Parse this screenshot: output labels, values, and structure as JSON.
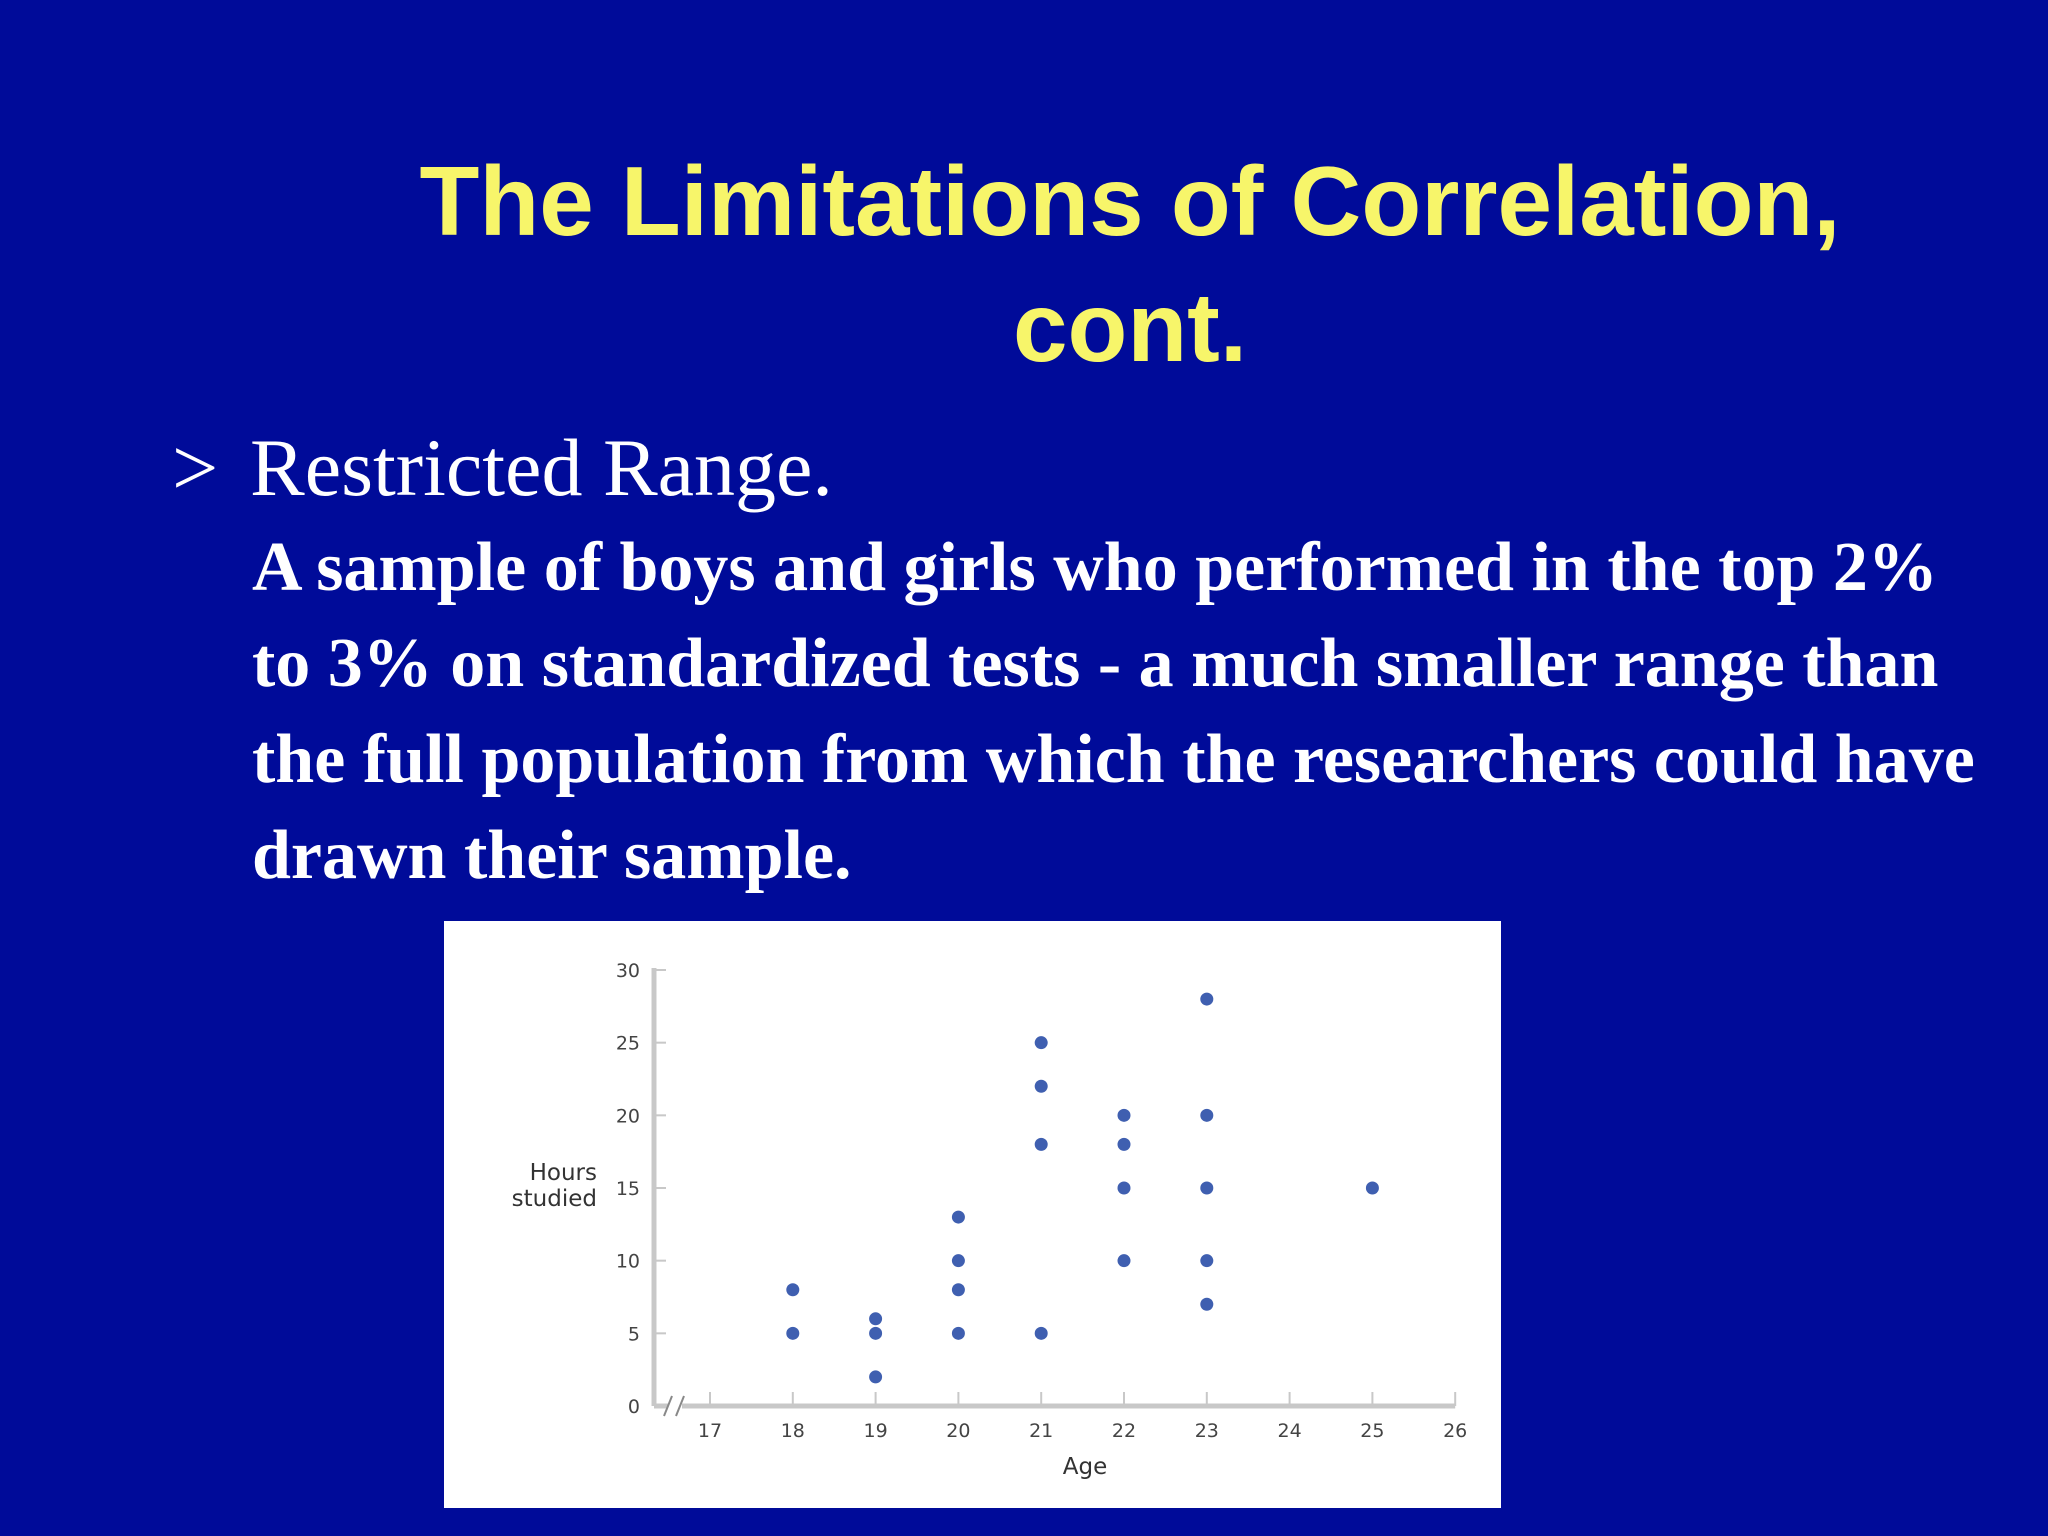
{
  "slide": {
    "title_line1": "The Limitations of Correlation,",
    "title_line2": "cont.",
    "bullet_marker": ">",
    "bullet_heading": "Restricted Range.",
    "body": "A sample of boys and girls who performed in the top 2% to 3% on standardized tests - a much smaller range than the full population from which the researchers could have drawn their sample."
  },
  "colors": {
    "background": "#000b99",
    "title": "#f7f56a",
    "text": "#ffffff",
    "point": "#3f5fb0",
    "axis": "#c8c8c8"
  },
  "chart_data": {
    "type": "scatter",
    "xlabel": "Age",
    "ylabel_line1": "Hours",
    "ylabel_line2": "studied",
    "xlim": [
      17,
      26
    ],
    "ylim": [
      0,
      30
    ],
    "xticks": [
      17,
      18,
      19,
      20,
      21,
      22,
      23,
      24,
      25,
      26
    ],
    "yticks": [
      0,
      5,
      10,
      15,
      20,
      25,
      30
    ],
    "axis_break": true,
    "grid": false,
    "points": [
      {
        "x": 18,
        "y": 8
      },
      {
        "x": 18,
        "y": 5
      },
      {
        "x": 19,
        "y": 6
      },
      {
        "x": 19,
        "y": 5
      },
      {
        "x": 19,
        "y": 2
      },
      {
        "x": 20,
        "y": 13
      },
      {
        "x": 20,
        "y": 10
      },
      {
        "x": 20,
        "y": 8
      },
      {
        "x": 20,
        "y": 5
      },
      {
        "x": 21,
        "y": 25
      },
      {
        "x": 21,
        "y": 22
      },
      {
        "x": 21,
        "y": 18
      },
      {
        "x": 21,
        "y": 5
      },
      {
        "x": 22,
        "y": 20
      },
      {
        "x": 22,
        "y": 18
      },
      {
        "x": 22,
        "y": 15
      },
      {
        "x": 22,
        "y": 10
      },
      {
        "x": 23,
        "y": 28
      },
      {
        "x": 23,
        "y": 20
      },
      {
        "x": 23,
        "y": 15
      },
      {
        "x": 23,
        "y": 10
      },
      {
        "x": 23,
        "y": 7
      },
      {
        "x": 25,
        "y": 15
      }
    ]
  }
}
